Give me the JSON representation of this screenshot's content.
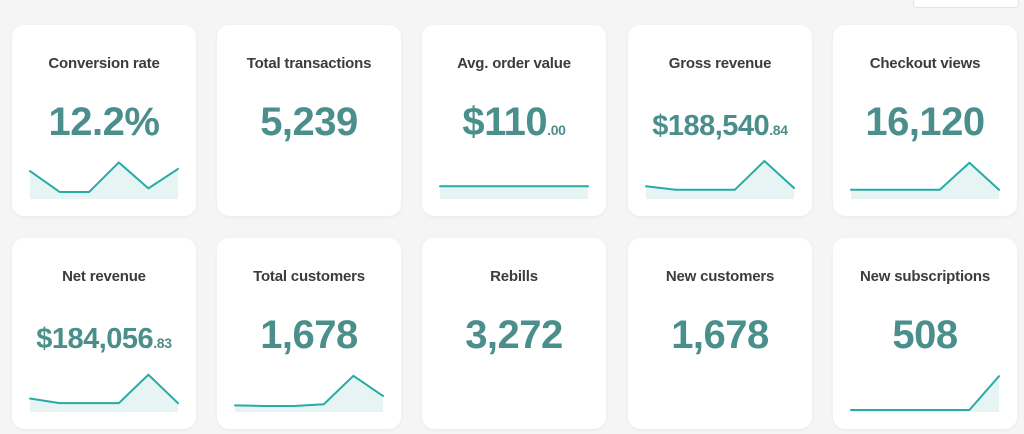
{
  "colors": {
    "accent": "#26aca4",
    "value_text": "#4b8f8c",
    "fill": "#e6f5f3",
    "card_bg": "#ffffff",
    "page_bg": "#f5f5f5"
  },
  "cards": [
    {
      "title": "Conversion rate",
      "value": "12.2%",
      "cents": "",
      "trend": [
        0.72,
        0.14,
        0.14,
        0.96,
        0.24,
        0.78
      ]
    },
    {
      "title": "Total transactions",
      "value": "5,239",
      "cents": ""
    },
    {
      "title": "Avg. order value",
      "value": "$110",
      "cents": ".00",
      "trend": [
        0.3,
        0.3,
        0.3,
        0.3,
        0.3,
        0.3
      ]
    },
    {
      "title": "Gross revenue",
      "value": "$188,540",
      "cents": ".84",
      "trend": [
        0.3,
        0.2,
        0.2,
        0.2,
        1.0,
        0.25
      ]
    },
    {
      "title": "Checkout views",
      "value": "16,120",
      "cents": "",
      "trend": [
        0.2,
        0.2,
        0.2,
        0.2,
        0.95,
        0.2
      ]
    },
    {
      "title": "Net revenue",
      "value": "$184,056",
      "cents": ".83",
      "trend": [
        0.32,
        0.19,
        0.19,
        0.19,
        0.98,
        0.19
      ]
    },
    {
      "title": "Total customers",
      "value": "1,678",
      "cents": "",
      "trend": [
        0.13,
        0.11,
        0.11,
        0.16,
        0.95,
        0.39
      ]
    },
    {
      "title": "Rebills",
      "value": "3,272",
      "cents": ""
    },
    {
      "title": "New customers",
      "value": "1,678",
      "cents": ""
    },
    {
      "title": "New subscriptions",
      "value": "508",
      "cents": "",
      "trend": [
        0.0,
        0.0,
        0.0,
        0.0,
        0.0,
        0.94
      ]
    }
  ]
}
